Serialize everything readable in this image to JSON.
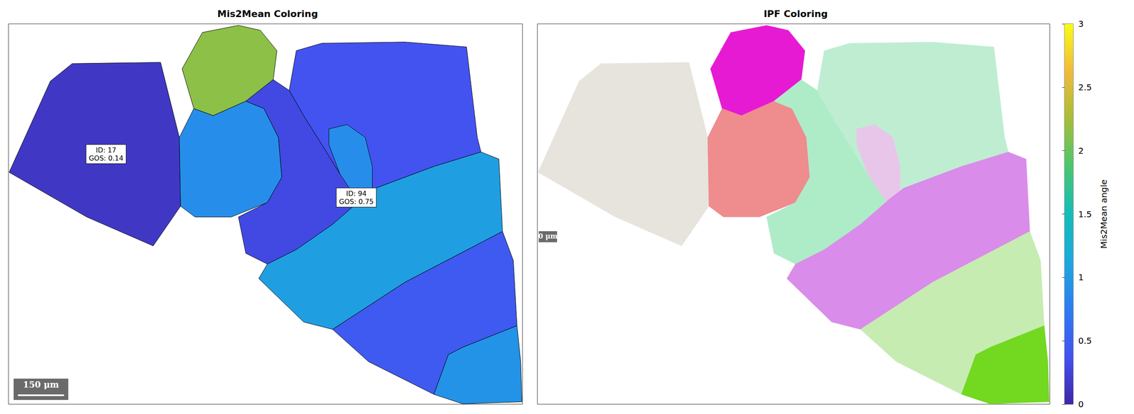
{
  "chart_data": [
    {
      "type": "map",
      "title": "Mis2Mean Coloring",
      "xlim": [
        0,
        1670
      ],
      "ylim": [
        0,
        1235
      ],
      "tick_labels": false,
      "scale_bar": {
        "length": 150,
        "label": "150 μm"
      },
      "grains": [
        {
          "value": 0.15,
          "polygon": [
            [
              2,
              482
            ],
            [
              136,
              186
            ],
            [
              207,
              129
            ],
            [
              494,
              125
            ],
            [
              555,
              369
            ],
            [
              559,
              592
            ],
            [
              470,
              721
            ],
            [
              254,
              627
            ]
          ]
        },
        {
          "value": 2.15,
          "polygon": [
            [
              564,
              146
            ],
            [
              630,
              28
            ],
            [
              747,
              5
            ],
            [
              818,
              21
            ],
            [
              872,
              87
            ],
            [
              860,
              181
            ],
            [
              771,
              251
            ],
            [
              665,
              298
            ],
            [
              602,
              275
            ]
          ]
        },
        {
          "value": 0.9,
          "polygon": [
            [
              555,
              369
            ],
            [
              602,
              275
            ],
            [
              665,
              298
            ],
            [
              771,
              251
            ],
            [
              830,
              275
            ],
            [
              877,
              369
            ],
            [
              888,
              498
            ],
            [
              841,
              580
            ],
            [
              724,
              627
            ],
            [
              606,
              627
            ],
            [
              559,
              592
            ]
          ]
        },
        {
          "value": 0.3,
          "polygon": [
            [
              771,
              251
            ],
            [
              860,
              181
            ],
            [
              912,
              216
            ],
            [
              959,
              298
            ],
            [
              1018,
              392
            ],
            [
              1076,
              486
            ],
            [
              1147,
              569
            ],
            [
              1053,
              651
            ],
            [
              935,
              733
            ],
            [
              841,
              780
            ],
            [
              771,
              745
            ],
            [
              747,
              627
            ],
            [
              841,
              580
            ],
            [
              888,
              498
            ],
            [
              877,
              369
            ],
            [
              830,
              275
            ]
          ]
        },
        {
          "value": 0.38,
          "polygon": [
            [
              912,
              216
            ],
            [
              935,
              87
            ],
            [
              1018,
              63
            ],
            [
              1288,
              59
            ],
            [
              1488,
              75
            ],
            [
              1523,
              369
            ],
            [
              1535,
              416
            ],
            [
              1382,
              463
            ],
            [
              1194,
              533
            ],
            [
              1147,
              569
            ],
            [
              1076,
              486
            ],
            [
              1018,
              392
            ],
            [
              959,
              298
            ]
          ]
        },
        {
          "value": 0.9,
          "polygon": [
            [
              1041,
              341
            ],
            [
              1100,
              327
            ],
            [
              1159,
              369
            ],
            [
              1182,
              463
            ],
            [
              1182,
              627
            ],
            [
              1159,
              604
            ],
            [
              1123,
              557
            ],
            [
              1076,
              486
            ],
            [
              1041,
              392
            ]
          ]
        },
        {
          "value": 1.05,
          "polygon": [
            [
              1147,
              569
            ],
            [
              1194,
              533
            ],
            [
              1382,
              463
            ],
            [
              1535,
              416
            ],
            [
              1593,
              439
            ],
            [
              1605,
              674
            ],
            [
              1288,
              839
            ],
            [
              1053,
              992
            ],
            [
              959,
              968
            ],
            [
              813,
              827
            ],
            [
              841,
              780
            ],
            [
              935,
              733
            ],
            [
              1053,
              651
            ]
          ]
        },
        {
          "value": 0.45,
          "polygon": [
            [
              1053,
              992
            ],
            [
              1288,
              839
            ],
            [
              1605,
              674
            ],
            [
              1640,
              768
            ],
            [
              1652,
              980
            ],
            [
              1476,
              1050
            ],
            [
              1429,
              1074
            ],
            [
              1382,
              1203
            ],
            [
              1170,
              1097
            ]
          ]
        },
        {
          "value": 0.95,
          "polygon": [
            [
              1382,
              1203
            ],
            [
              1429,
              1074
            ],
            [
              1476,
              1050
            ],
            [
              1652,
              980
            ],
            [
              1664,
              1097
            ],
            [
              1668,
              1227
            ],
            [
              1476,
              1234
            ]
          ]
        }
      ],
      "annotations": [
        {
          "lines": [
            "ID: 17",
            "GOS: 0.14"
          ],
          "x": 317,
          "y": 423
        },
        {
          "lines": [
            "ID: 94",
            "GOS: 0.75"
          ],
          "x": 1130,
          "y": 564
        }
      ],
      "colorbar": {
        "label": "Mis2Mean angle",
        "range": [
          0,
          3
        ],
        "ticks": [
          0,
          0.5,
          1,
          1.5,
          2,
          2.5,
          3
        ]
      }
    },
    {
      "type": "map",
      "title": "IPF Coloring",
      "xlim": [
        0,
        1670
      ],
      "ylim": [
        0,
        1235
      ],
      "tick_labels": false,
      "scale_bar": {
        "length": 0,
        "label": "0 μm"
      },
      "colors": [
        "#e6e4dc",
        "#e61ad2",
        "#ee8c8e",
        "#aeecc8",
        "#bfedd2",
        "#e8c6ea",
        "#d98ce9",
        "#c6ecb2",
        "#72d820"
      ]
    }
  ]
}
